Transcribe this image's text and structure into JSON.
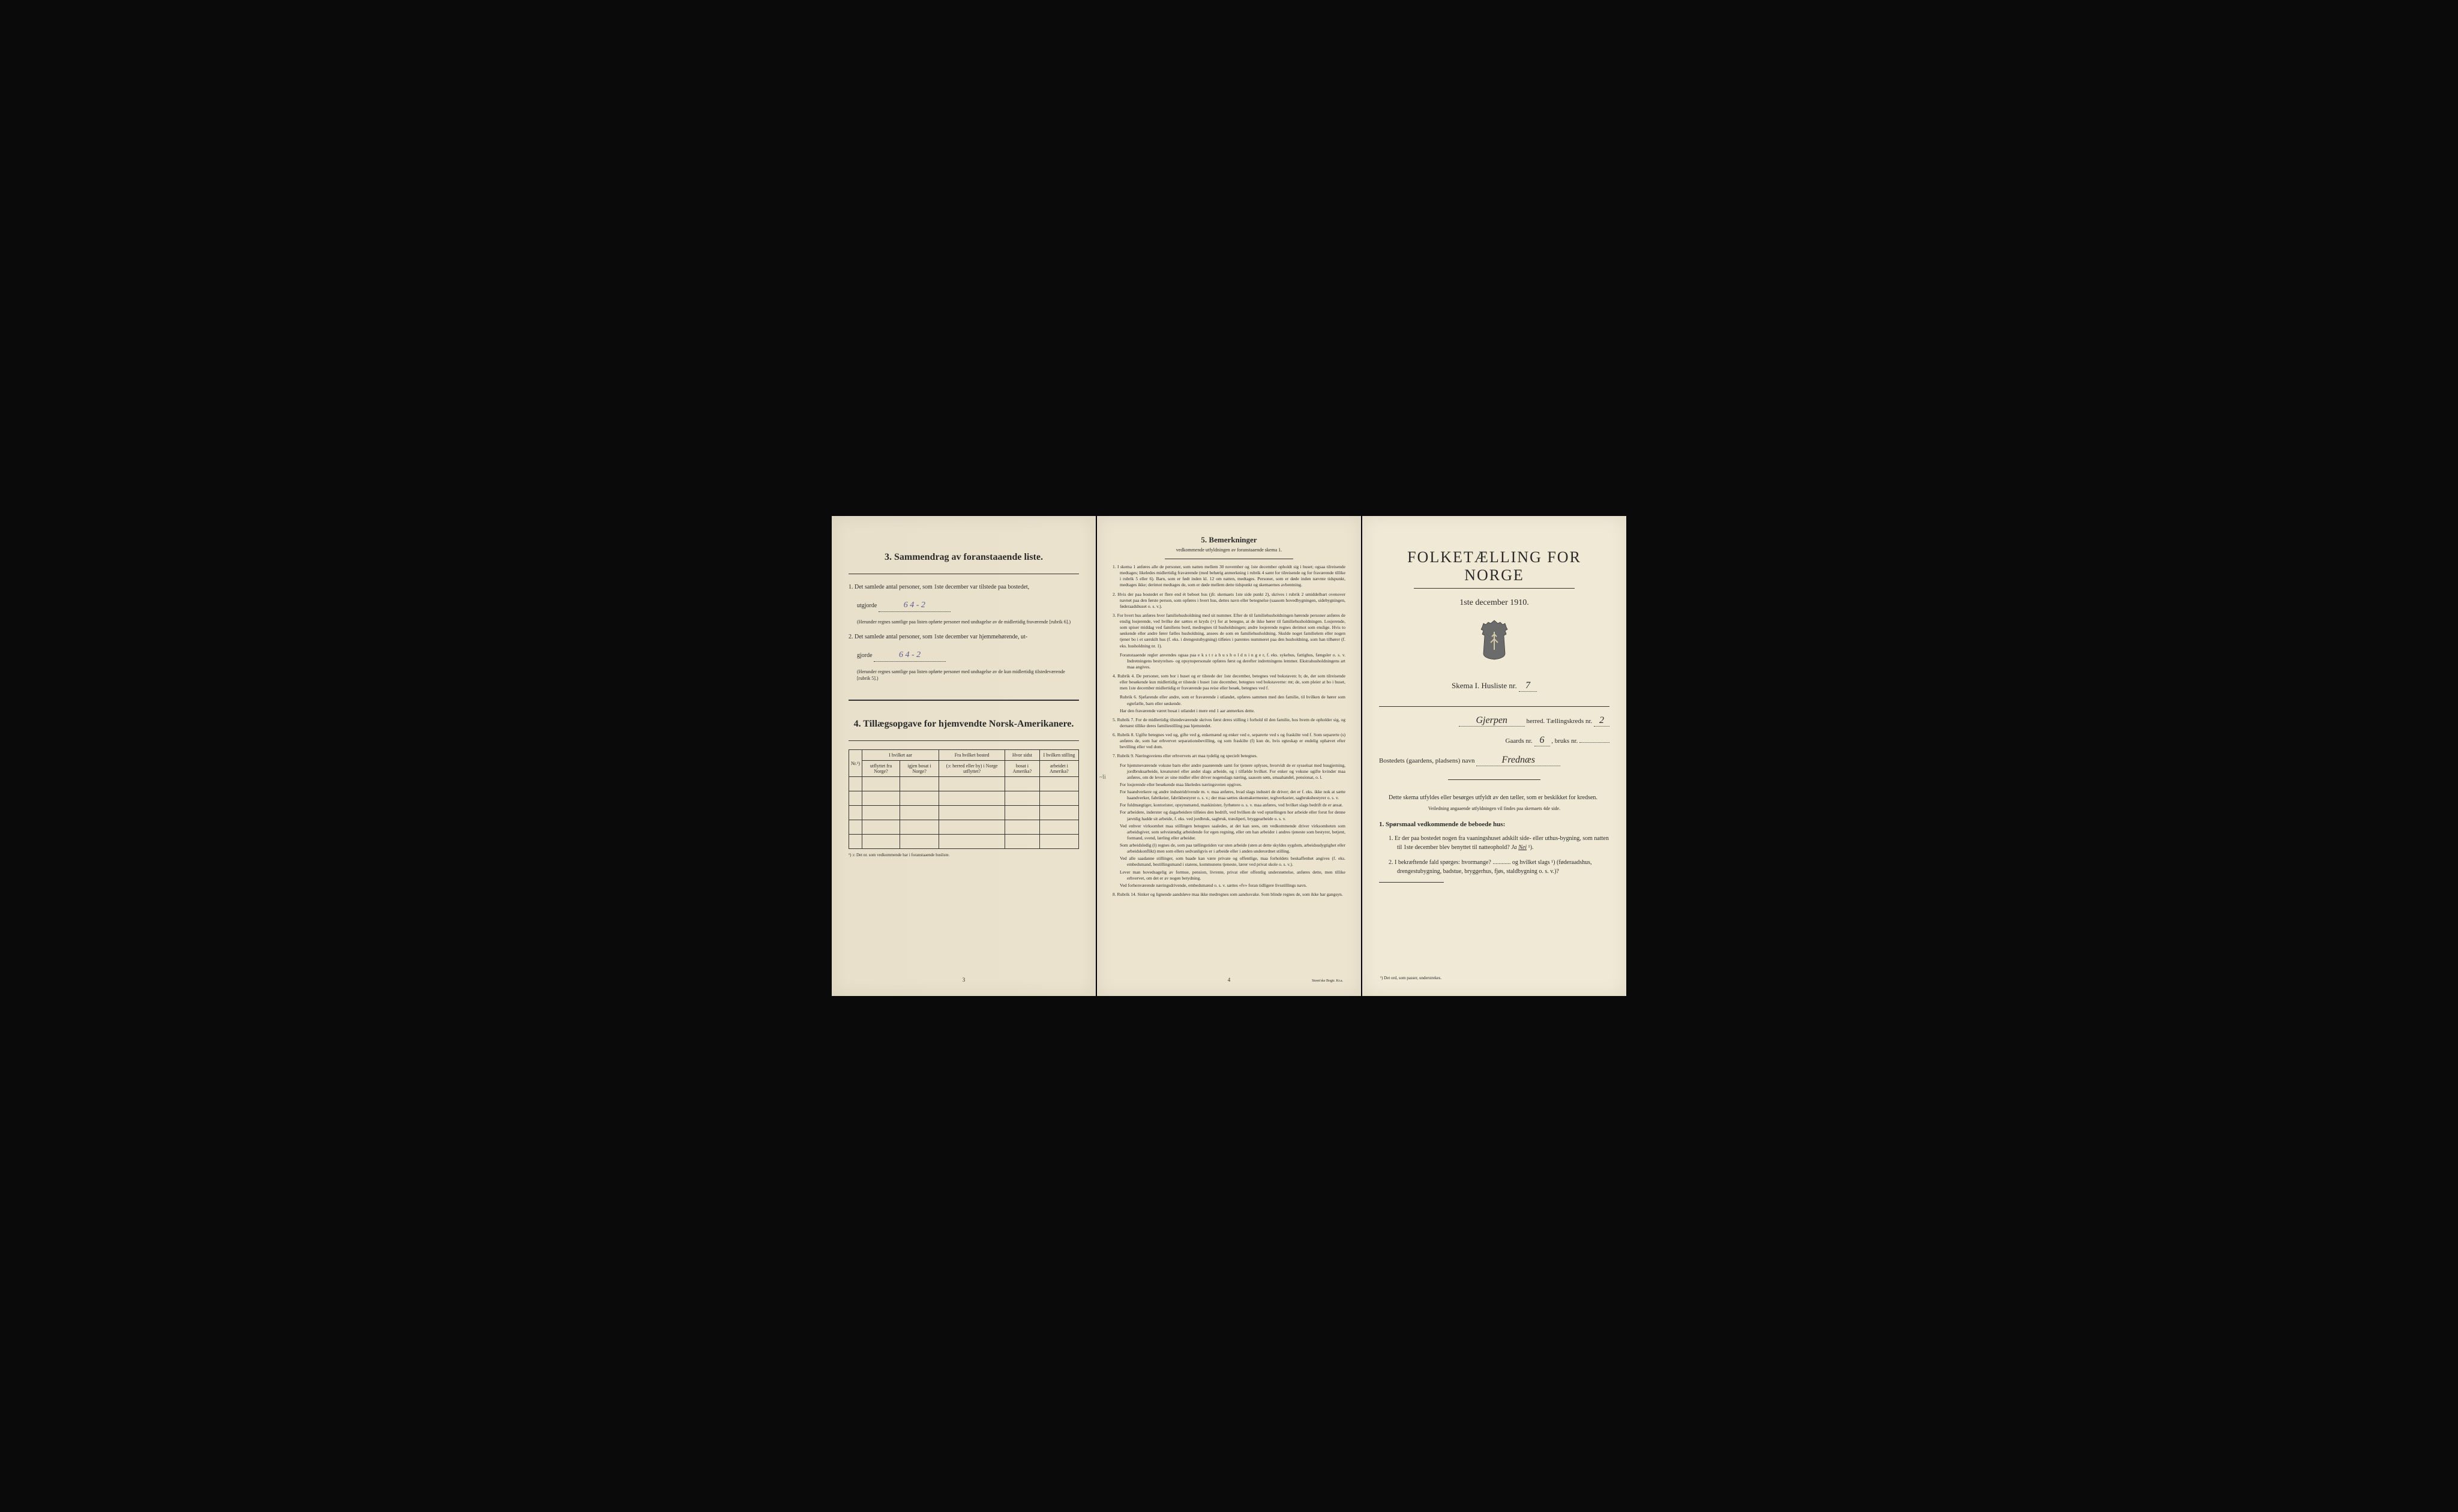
{
  "page1": {
    "section3_title": "3.  Sammendrag av foranstaaende liste.",
    "item1_a": "1.  Det samlede antal personer, som 1ste december var tilstede paa bostedet,",
    "item1_b": "utgjorde",
    "item1_vals": "6    4 - 2",
    "item1_note": "(Herunder regnes samtlige paa listen opførte personer med undtagelse av de midlertidig fraværende [rubrik 6].)",
    "item2_a": "2.  Det samlede antal personer, som 1ste december var hjemmehørende, ut-",
    "item2_b": "gjorde",
    "item2_vals": "6    4 - 2",
    "item2_note": "(Herunder regnes samtlige paa listen opførte personer med undtagelse av de kun midlertidig tilstedeværende [rubrik 5].)",
    "section4_title": "4.  Tillægsopgave for hjemvendte Norsk-Amerikanere.",
    "th_nr": "Nr.¹)",
    "th_col2a": "I hvilket aar",
    "th_col2b": "utflyttet fra Norge?",
    "th_col2c": "igjen bosat i Norge?",
    "th_col3a": "Fra hvilket bosted",
    "th_col3b": "(ɔ: herred eller by) i Norge utflyttet?",
    "th_col4a": "Hvor sidst",
    "th_col4b": "bosat i Amerika?",
    "th_col5a": "I hvilken stilling",
    "th_col5b": "arbeidet i Amerika?",
    "table_footnote": "¹) ɔ: Det nr. som vedkommende har i foranstaaende husliste.",
    "pagenum": "3"
  },
  "page2": {
    "title": "5.  Bemerkninger",
    "subtitle": "vedkommende utfyldningen av foranstaaende skema 1.",
    "r1": "1.  I skema 1 anføres alle de personer, som natten mellem 30 november og 1ste december opholdt sig i huset; ogsaa tilreisende medtages; likeledes midlertidig fraværende (med behørig anmerkning i rubrik 4 samt for tilreisende og for fraværende tillike i rubrik 5 eller 6). Barn, som er født inden kl. 12 om natten, medtages. Personer, som er døde inden nævnte tidspunkt, medtages ikke; derimot medtages de, som er døde mellem dette tidspunkt og skemaernes avhentning.",
    "r2": "2.  Hvis der paa bostedet er flere end ét beboet hus (jfr. skemaets 1ste side punkt 2), skrives i rubrik 2 umiddelbart ovenover navnet paa den første person, som opføres i hvert hus, dettes navn eller betegnelse (saasom hovedbygningen, sidebygningen, føderaadshuset o. s. v.).",
    "r3": "3.  For hvert hus anføres hver familiehusholdning med sit nummer. Efter de til familiehusholdningen hørende personer anføres de enslig losjerende, ved hvilke der sættes et kryds (×) for at betegne, at de ikke hører til familiehusholdningen. Losjerende, som spiser middag ved familiens bord, medregnes til husholdningen; andre losjerende regnes derimot som enslige. Hvis to søskende eller andre fører fælles husholdning, ansees de som en familiehusholdning. Skulde noget familielem eller nogen tjener bo i et særskilt hus (f. eks. i drengestubygning) tilføies i parentes nummeret paa den husholdning, som han tilhører (f. eks. husholdning nr. 1).",
    "r3b": "Foranstaaende regler anvendes ogsaa paa e k s t r a h u s h o l d n i n g e r, f. eks. sykehus, fattighus, fængsler o. s. v. Indretningens bestyrelses- og opsynspersonale opføres først og derefter indretningens lemmer. Ekstrahusholdningens art maa angives.",
    "r4": "4.  Rubrik 4. De personer, som bor i huset og er tilstede der 1ste december, betegnes ved bokstaven: b; de, der som tilreisende eller besøkende kun midlertidig er tilstede i huset 1ste december, betegnes ved bokstaverne: mt; de, som pleier at bo i huset, men 1ste december midlertidig er fraværende paa reise eller besøk, betegnes ved f.",
    "r4b": "Rubrik 6. Sjøfarende eller andre, som er fraværende i utlandet, opføres sammen med den familie, til hvilken de hører som egtefælle, barn eller søskende.",
    "r4c": "Har den fraværende været bosat i utlandet i mere end 1 aar anmerkes dette.",
    "r5": "5.  Rubrik 7. For de midlertidig tilstedeværende skrives først deres stilling i forhold til den familie, hos hvem de opholder sig, og dernæst tillike deres familiestilling paa hjemstedet.",
    "r6": "6.  Rubrik 8. Ugifte betegnes ved ug, gifte ved g, enkemænd og enker ved e, separerte ved s og fraskilte ved f. Som separerte (s) anføres de, som har erhvervet separationsbevilling, og som fraskilte (f) kun de, hvis egteskap er endelig ophævet efter bevilling eller ved dom.",
    "r7": "7.  Rubrik 9. Næringsveiens eller erhvervets art maa tydelig og specielt betegnes.",
    "r7a": "For hjemmeværende voksne barn eller andre paarørende samt for tjenere oplyses, hvorvidt de er sysselsat med husgjerning, jordbruksarbeide, kreaturstel eller andet slags arbeide, og i tilfælde hvilket. For enker og voksne ugifte kvinder maa anføres, om de lever av sine midler eller driver nogenslags næring, saasom søm, smaahandel, pensionat, o. l.",
    "r7b": "For losjerende eller besøkende maa likeledes næringsveien opgives.",
    "r7c": "For haandverkere og andre industridrivende m. v. maa anføres, hvad slags industri de driver; det er f. eks. ikke nok at sætte haandverker, fabrikeier, fabrikbestyrer o. s. v.; der maa sættes skomakermester, teglverkseier, sagbruksbestyrer o. s. v.",
    "r7d": "For fuldmægtiger, kontorister, opsynsmænd, maskinister, fyrbøtere o. s. v. maa anføres, ved hvilket slags bedrift de er ansat.",
    "r7e": "For arbeidere, inderster og dagarbeidere tilføies den bedrift, ved hvilken de ved optællingen hor arbeide eller forut for denne jævnlig hadde sit arbeide, f. eks. ved jordbruk, sagbruk, træsliperi, bryggearbeide o. s. v.",
    "r7f": "Ved enhver virksomhet maa stillingen betegnes saaledes, at det kan sees, om vedkommende driver virksomheten som arbeidsgiver, som selvstændig arbeidende for egen regning, eller om han arbeider i andres tjeneste som bestyrer, betjent, formand, svend, lærling eller arbeider.",
    "r7g": "Som arbeidsledig (l) regnes de, som paa tællingstiden var uten arbeide (uten at dette skyldes sygdom, arbeidsudygtighet eller arbeidskonflikt) men som ellers sedvanligvis er i arbeide eller i anden underordnet stilling.",
    "r7h": "Ved alle saadanne stillinger, som baade kan være private og offentlige, maa forholdets beskaffenhet angives (f. eks. embedsmand, bestillingsmand i statens, kommunens tjeneste, lærer ved privat skole o. s. v.).",
    "r7i": "Lever man hovedsagelig av formue, pension, livrente, privat eller offentlig understøttelse, anføres dette, men tillike erhvervet, om det er av nogen betydning.",
    "r7j": "Ved forhenværende næringsdrivende, embedsmænd o. s. v. sættes «fv» foran tidligere livsstillings navn.",
    "r8": "8.  Rubrik 14. Sinker og lignende aandsløve maa ikke medregnes som aandssvake. Som blinde regnes de, som ikke har gangsyn.",
    "pagenum": "4",
    "printer": "Steen'ske Bogtr.  Kr.a.",
    "margin_mark": "~li"
  },
  "page3": {
    "title": "FOLKETÆLLING FOR NORGE",
    "date": "1ste december 1910.",
    "skema": "Skema I.   Husliste nr.",
    "husliste_nr": "7",
    "herred_value": "Gjerpen",
    "herred_label": "herred.   Tællingskreds nr.",
    "kreds_nr": "2",
    "gaard_label": "Gaards nr.",
    "gaard_nr": "6",
    "bruks_label": ", bruks nr.",
    "bosted_label": "Bostedets (gaardens, pladsens) navn",
    "bosted_value": "Frednæs",
    "intro": "Dette skema utfyldes eller besørges utfyldt av den tæller, som er beskikket for kredsen.",
    "guidance": "Veiledning angaaende utfyldningen vil findes paa skemaets 4de side.",
    "q_head": "1.  Spørsmaal vedkommende de beboede hus:",
    "q1": "1.  Er der paa bostedet nogen fra vaaningshuset adskilt side- eller uthus-bygning, som natten til 1ste december blev benyttet til natteophold?   Ja   Nei ¹).",
    "q2": "2.  I bekræftende fald spørges: hvormange? ............ og hvilket slags ¹) (føderaadshus, drengestubygning, badstue, bryggerhus, fjøs, staldbygning o. s. v.)?",
    "footnote": "¹) Det ord, som passer, understrekes."
  },
  "colors": {
    "paper1": "#e8e0ca",
    "paper2": "#ece4cf",
    "paper3": "#f0e9d5",
    "ink": "#2a2a2a",
    "handwriting": "#5a5a8f",
    "background": "#0a0a0a"
  }
}
